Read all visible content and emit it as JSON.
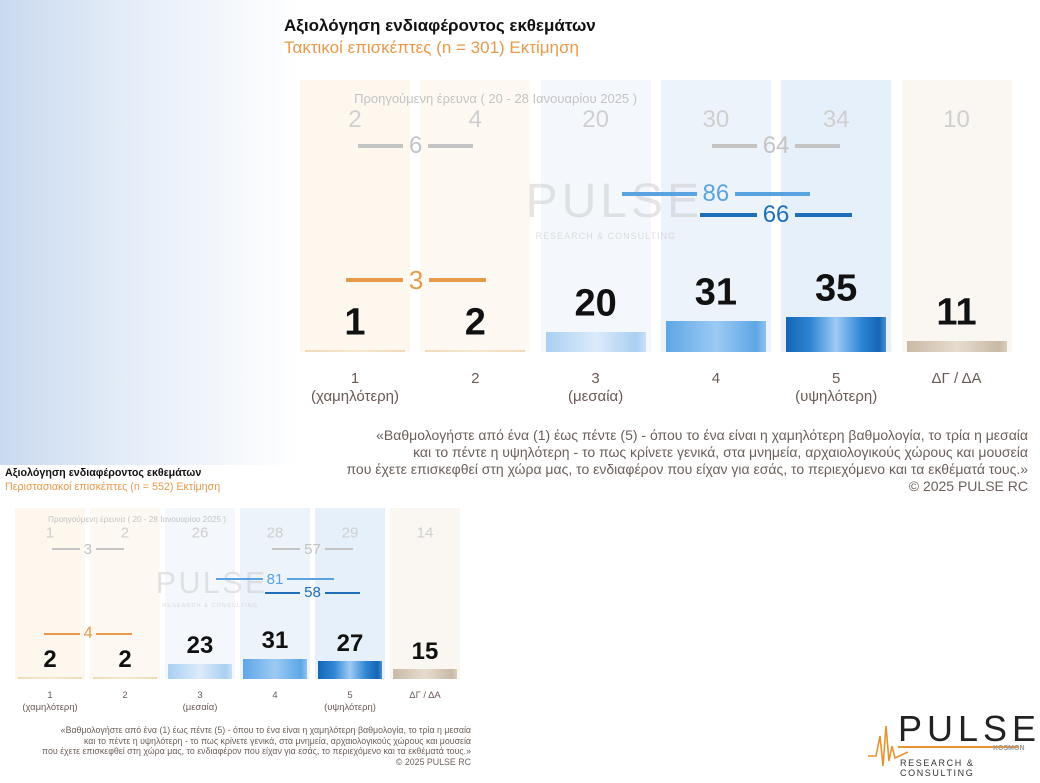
{
  "chart_data": [
    {
      "type": "bar",
      "title": "Αξιολόγηση ενδιαφέροντος εκθεμάτων",
      "subtitle": "Τακτικοί επισκέπτες  (n = 301)   Εκτίμηση",
      "previous_label": "Προηγούμενη έρευνα ( 20 - 28 Ιανουαρίου 2025 )",
      "categories": [
        [
          "1",
          "(χαμηλότερη)"
        ],
        [
          "2",
          ""
        ],
        [
          "3",
          "(μεσαία)"
        ],
        [
          "4",
          ""
        ],
        [
          "5",
          "(υψηλότερη)"
        ],
        [
          "ΔΓ / ΔΑ",
          ""
        ]
      ],
      "values": [
        1,
        2,
        20,
        31,
        35,
        11
      ],
      "previous_values": [
        2,
        4,
        20,
        30,
        34,
        10
      ],
      "aggregates": {
        "low_prev": 6,
        "low_current": 3,
        "high_prev": 64,
        "mid_high_current": 86,
        "high_current": 66
      },
      "question": [
        "«Βαθμολογήστε από ένα (1) έως πέντε (5) - όπου το ένα είναι η χαμηλότερη βαθμολογία, το τρία η μεσαία",
        "και το πέντε η υψηλότερη - το πως κρίνετε γενικά,  στα μνημεία, αρχαιολογικούς χώρους και μουσεία",
        "που έχετε επισκεφθεί στη χώρα μας, το ενδιαφέρον που είχαν για εσάς, το περιεχόμενο και τα εκθέματά τους.»",
        "©  2025  PULSE RC"
      ]
    },
    {
      "type": "bar",
      "title": "Αξιολόγηση ενδιαφέροντος εκθεμάτων",
      "subtitle": "Περιστασιακοί επισκέπτες  (n = 552)   Εκτίμηση",
      "previous_label": "Προηγούμενη έρευνα ( 20 - 28 Ιανουαρίου 2025 )",
      "categories": [
        [
          "1",
          "(χαμηλότερη)"
        ],
        [
          "2",
          ""
        ],
        [
          "3",
          "(μεσαία)"
        ],
        [
          "4",
          ""
        ],
        [
          "5",
          "(υψηλότερη)"
        ],
        [
          "ΔΓ / ΔΑ",
          ""
        ]
      ],
      "values": [
        2,
        2,
        23,
        31,
        27,
        15
      ],
      "previous_values": [
        1,
        2,
        26,
        28,
        29,
        14
      ],
      "aggregates": {
        "low_prev": 3,
        "low_current": 4,
        "high_prev": 57,
        "mid_high_current": 81,
        "high_current": 58
      },
      "question": [
        "«Βαθμολογήστε από ένα (1) έως πέντε (5) - όπου το ένα είναι η χαμηλότερη βαθμολογία, το τρία η μεσαία",
        "και το πέντε η υψηλότερη - το πως κρίνετε γενικά,  στα μνημεία, αρχαιολογικούς χώρους και μουσεία",
        "που έχετε επισκεφθεί στη χώρα μας, το ενδιαφέρον που είχαν για εσάς, το περιεχόμενο και τα εκθέματά τους.»",
        "©  2025  PULSE RC"
      ]
    }
  ],
  "colors": {
    "orange": "#e89a4a",
    "gray": "#c4c4c4",
    "light_blue": "#5ba3e0",
    "dark_blue": "#1e6fb8",
    "neutral": "#cbbfae"
  },
  "watermark": {
    "main": "PULSE",
    "tag": "RESEARCH & CONSULTING"
  },
  "logo": {
    "main": "PULSE",
    "brand": "KOSMON",
    "tag": "RESEARCH & CONSULTING"
  }
}
